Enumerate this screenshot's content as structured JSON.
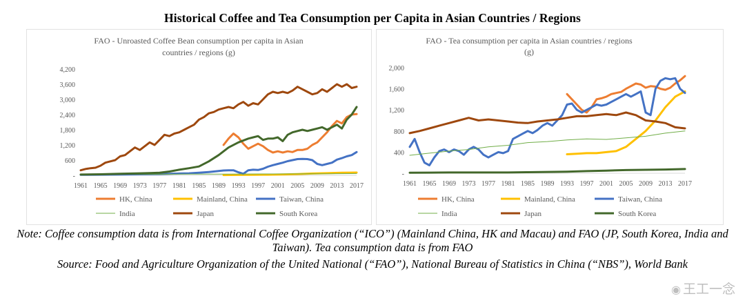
{
  "title": "Historical Coffee and Tea Consumption per Capita in Asian Countries / Regions",
  "note": "Note: Coffee consumption data is from International Coffee Organization (“ICO”) (Mainland China, HK and Macau) and FAO (JP, South Korea, India and Taiwan). Tea consumption data is from FAO",
  "source": "Source: Food and Agriculture Organization of the United National (“FAO”), National Bureau of Statistics in China (“NBS”), World Bank",
  "watermark": "王工一念",
  "colors": {
    "hk": "#ed7d31",
    "mainland": "#ffc000",
    "taiwan": "#4472c4",
    "india": "#70ad47",
    "japan": "#9e480e",
    "korea": "#43682b"
  },
  "chart_data": [
    {
      "type": "line",
      "title_lines": [
        "FAO - Unroasted Coffee Bean consumption per capita in Asian",
        "countries / regions  (g)"
      ],
      "ylim": [
        0,
        4200
      ],
      "yticks": [
        0,
        600,
        1200,
        1800,
        2400,
        3000,
        3600,
        4200
      ],
      "ytick_labels": [
        "-",
        "600",
        "1,200",
        "1,800",
        "2,400",
        "3,000",
        "3,600",
        "4,200"
      ],
      "xlim": [
        1961,
        2017
      ],
      "xticks": [
        "1961",
        "1965",
        "1969",
        "1973",
        "1977",
        "1981",
        "1985",
        "1989",
        "1993",
        "1997",
        "2001",
        "2005",
        "2009",
        "2013",
        "2017"
      ],
      "series": [
        {
          "name": "HK, China",
          "color_key": "hk",
          "x": [
            1990,
            1991,
            1992,
            1993,
            1994,
            1995,
            1996,
            1997,
            1998,
            1999,
            2000,
            2001,
            2002,
            2003,
            2004,
            2005,
            2006,
            2007,
            2008,
            2009,
            2010,
            2011,
            2012,
            2013,
            2014,
            2015,
            2016,
            2017
          ],
          "values": [
            1200,
            1450,
            1650,
            1500,
            1250,
            1050,
            1150,
            1250,
            1150,
            1000,
            900,
            950,
            900,
            950,
            920,
            1000,
            1000,
            1050,
            1200,
            1300,
            1500,
            1700,
            1950,
            2150,
            2050,
            2300,
            2400,
            2420
          ]
        },
        {
          "name": "Mainland, China",
          "color_key": "mainland",
          "x": [
            1990,
            1993,
            1996,
            1999,
            2002,
            2005,
            2008,
            2011,
            2014,
            2017
          ],
          "values": [
            10,
            15,
            20,
            25,
            35,
            50,
            70,
            85,
            100,
            110
          ]
        },
        {
          "name": "Taiwan, China",
          "color_key": "taiwan",
          "x": [
            1961,
            1965,
            1969,
            1973,
            1977,
            1981,
            1983,
            1985,
            1987,
            1989,
            1990,
            1991,
            1992,
            1993,
            1994,
            1995,
            1996,
            1997,
            1998,
            1999,
            2000,
            2001,
            2002,
            2003,
            2004,
            2005,
            2006,
            2007,
            2008,
            2009,
            2010,
            2011,
            2012,
            2013,
            2014,
            2015,
            2016,
            2017
          ],
          "values": [
            20,
            25,
            30,
            40,
            50,
            70,
            80,
            100,
            130,
            170,
            190,
            200,
            200,
            120,
            60,
            200,
            220,
            210,
            260,
            340,
            400,
            450,
            500,
            560,
            600,
            640,
            650,
            640,
            600,
            450,
            400,
            450,
            500,
            620,
            680,
            750,
            800,
            920
          ]
        },
        {
          "name": "India",
          "color_key": "india",
          "x": [
            1961,
            1971,
            1981,
            1991,
            2001,
            2011,
            2017
          ],
          "values": [
            30,
            40,
            45,
            50,
            55,
            60,
            70
          ]
        },
        {
          "name": "Japan",
          "color_key": "japan",
          "x": [
            1961,
            1962,
            1963,
            1964,
            1965,
            1966,
            1967,
            1968,
            1969,
            1970,
            1971,
            1972,
            1973,
            1974,
            1975,
            1976,
            1977,
            1978,
            1979,
            1980,
            1981,
            1982,
            1983,
            1984,
            1985,
            1986,
            1987,
            1988,
            1989,
            1990,
            1991,
            1992,
            1993,
            1994,
            1995,
            1996,
            1997,
            1998,
            1999,
            2000,
            2001,
            2002,
            2003,
            2004,
            2005,
            2006,
            2007,
            2008,
            2009,
            2010,
            2011,
            2012,
            2013,
            2014,
            2015,
            2016,
            2017
          ],
          "values": [
            200,
            250,
            280,
            300,
            380,
            500,
            550,
            600,
            750,
            800,
            950,
            1100,
            1000,
            1150,
            1300,
            1200,
            1400,
            1600,
            1550,
            1650,
            1700,
            1800,
            1900,
            2000,
            2200,
            2300,
            2450,
            2500,
            2600,
            2650,
            2700,
            2650,
            2800,
            2900,
            2750,
            2850,
            2800,
            3000,
            3200,
            3300,
            3250,
            3300,
            3250,
            3350,
            3500,
            3400,
            3300,
            3200,
            3250,
            3400,
            3300,
            3450,
            3600,
            3500,
            3600,
            3450,
            3500
          ]
        },
        {
          "name": "South Korea",
          "color_key": "korea",
          "x": [
            1961,
            1965,
            1969,
            1973,
            1975,
            1977,
            1979,
            1981,
            1983,
            1985,
            1987,
            1989,
            1991,
            1993,
            1995,
            1996,
            1997,
            1998,
            1999,
            2000,
            2001,
            2002,
            2003,
            2004,
            2005,
            2006,
            2007,
            2008,
            2009,
            2010,
            2011,
            2012,
            2013,
            2014,
            2015,
            2016,
            2017
          ],
          "values": [
            30,
            40,
            60,
            80,
            90,
            100,
            150,
            220,
            280,
            350,
            550,
            800,
            1100,
            1300,
            1450,
            1500,
            1550,
            1400,
            1450,
            1450,
            1500,
            1350,
            1600,
            1700,
            1750,
            1800,
            1750,
            1800,
            1850,
            1900,
            1800,
            1900,
            2000,
            1850,
            2200,
            2400,
            2700
          ]
        }
      ]
    },
    {
      "type": "line",
      "title_lines": [
        "FAO - Tea consumption per capita in Asian countries / regions",
        "(g)"
      ],
      "ylim": [
        0,
        2000
      ],
      "yticks": [
        0,
        400,
        800,
        1200,
        1600,
        2000
      ],
      "ytick_labels": [
        "-",
        "400",
        "800",
        "1,200",
        "1,600",
        "2,000"
      ],
      "xlim": [
        1961,
        2017
      ],
      "xticks": [
        "1961",
        "1965",
        "1969",
        "1973",
        "1977",
        "1981",
        "1985",
        "1989",
        "1993",
        "1997",
        "2001",
        "2005",
        "2009",
        "2013",
        "2017"
      ],
      "series": [
        {
          "name": "HK, China",
          "color_key": "hk",
          "x": [
            1993,
            1994,
            1995,
            1996,
            1997,
            1998,
            1999,
            2000,
            2001,
            2002,
            2003,
            2004,
            2005,
            2006,
            2007,
            2008,
            2009,
            2010,
            2011,
            2012,
            2013,
            2014,
            2015,
            2016,
            2017
          ],
          "values": [
            1500,
            1400,
            1300,
            1200,
            1150,
            1250,
            1400,
            1420,
            1450,
            1500,
            1520,
            1540,
            1600,
            1650,
            1700,
            1680,
            1620,
            1650,
            1640,
            1600,
            1580,
            1620,
            1700,
            1760,
            1840
          ]
        },
        {
          "name": "Mainland, China",
          "color_key": "mainland",
          "x": [
            1993,
            1995,
            1997,
            1999,
            2001,
            2003,
            2005,
            2007,
            2009,
            2011,
            2013,
            2015,
            2017
          ],
          "values": [
            360,
            370,
            380,
            380,
            400,
            420,
            500,
            650,
            800,
            1000,
            1250,
            1450,
            1550
          ]
        },
        {
          "name": "Taiwan, China",
          "color_key": "taiwan",
          "x": [
            1961,
            1962,
            1963,
            1964,
            1965,
            1966,
            1967,
            1968,
            1969,
            1970,
            1971,
            1972,
            1973,
            1974,
            1975,
            1976,
            1977,
            1978,
            1979,
            1980,
            1981,
            1982,
            1983,
            1984,
            1985,
            1986,
            1987,
            1988,
            1989,
            1990,
            1991,
            1992,
            1993,
            1994,
            1995,
            1996,
            1997,
            1998,
            1999,
            2000,
            2001,
            2002,
            2003,
            2004,
            2005,
            2006,
            2007,
            2008,
            2009,
            2010,
            2011,
            2012,
            2013,
            2014,
            2015,
            2016,
            2017
          ],
          "values": [
            500,
            650,
            400,
            200,
            150,
            300,
            420,
            450,
            400,
            450,
            420,
            350,
            450,
            500,
            450,
            350,
            300,
            350,
            400,
            380,
            420,
            650,
            700,
            750,
            800,
            760,
            820,
            900,
            950,
            900,
            1000,
            1100,
            1300,
            1320,
            1200,
            1150,
            1200,
            1250,
            1300,
            1280,
            1300,
            1350,
            1400,
            1450,
            1500,
            1450,
            1500,
            1550,
            1150,
            1100,
            1600,
            1750,
            1800,
            1780,
            1800,
            1600,
            1520
          ]
        },
        {
          "name": "India",
          "color_key": "india",
          "x": [
            1961,
            1965,
            1969,
            1973,
            1977,
            1981,
            1985,
            1989,
            1993,
            1997,
            2001,
            2005,
            2009,
            2013,
            2017
          ],
          "values": [
            340,
            380,
            420,
            450,
            500,
            530,
            580,
            600,
            630,
            650,
            640,
            670,
            700,
            760,
            800
          ]
        },
        {
          "name": "Japan",
          "color_key": "japan",
          "x": [
            1961,
            1963,
            1965,
            1967,
            1969,
            1971,
            1973,
            1975,
            1977,
            1979,
            1981,
            1983,
            1985,
            1987,
            1989,
            1991,
            1993,
            1995,
            1997,
            1999,
            2001,
            2003,
            2005,
            2007,
            2009,
            2011,
            2013,
            2015,
            2017
          ],
          "values": [
            760,
            800,
            850,
            900,
            950,
            1000,
            1050,
            1000,
            1020,
            1000,
            980,
            960,
            950,
            980,
            1000,
            1020,
            1050,
            1080,
            1080,
            1100,
            1120,
            1100,
            1150,
            1100,
            1000,
            980,
            950,
            870,
            850
          ]
        },
        {
          "name": "South Korea",
          "color_key": "korea",
          "x": [
            1961,
            1965,
            1969,
            1973,
            1977,
            1981,
            1985,
            1989,
            1993,
            1997,
            2001,
            2005,
            2009,
            2013,
            2017
          ],
          "values": [
            10,
            12,
            15,
            15,
            15,
            15,
            20,
            25,
            30,
            40,
            50,
            60,
            65,
            70,
            80
          ]
        }
      ]
    }
  ]
}
